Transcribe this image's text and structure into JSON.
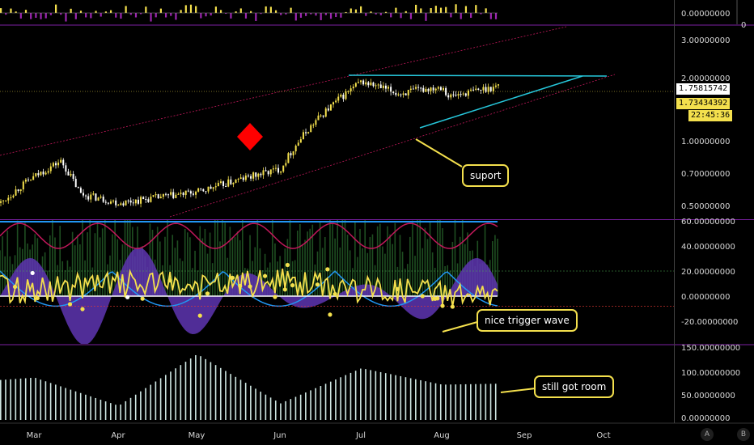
{
  "colors": {
    "background": "#000000",
    "pane_divider": "#7b1fa2",
    "candle_up": "#f4e04d",
    "candle_down": "#ffffff",
    "channel": "#c2185b",
    "triangle": "#26c6da",
    "diamond": "#ff0000",
    "wave_yellow": "#f4e04d",
    "wave_blue": "#2196f3",
    "wave_red": "#c2185b",
    "fill_purple": "#5e35b1",
    "fill_green": "#388e3c",
    "hist_bar": "#d0e8e4",
    "callout_border": "#f4e04d"
  },
  "axis": {
    "months": [
      "Mar",
      "Apr",
      "May",
      "Jun",
      "Jul",
      "Aug",
      "Sep",
      "Oct"
    ],
    "volume_ticks": [
      "0.00000000",
      "0"
    ],
    "price_ticks": [
      "3.00000000",
      "2.00000000",
      "1.00000000",
      "0.70000000",
      "0.50000000"
    ],
    "osc_ticks": [
      "60.00000000",
      "40.00000000",
      "20.00000000",
      "0.00000000",
      "-20.00000000"
    ],
    "hist_ticks": [
      "150.00000000",
      "100.00000000",
      "50.00000000",
      "0.00000000"
    ]
  },
  "price_labels": {
    "last": "1.75815742",
    "current": "1.73434392",
    "countdown": "22:45:36"
  },
  "annotations": {
    "support": "suport",
    "trigger": "nice trigger wave",
    "room": "still got room"
  },
  "buttons": {
    "auto": "A",
    "log": "B"
  },
  "chart_data": [
    {
      "type": "line",
      "pane": "price",
      "y_scale": "log",
      "ylim": [
        0.42,
        3.3
      ],
      "x": [
        "Mar",
        "Apr",
        "May",
        "Jun",
        "Jul",
        "Aug"
      ],
      "series": [
        {
          "values": [
            0.6,
            0.5,
            0.56,
            0.72,
            1.82,
            1.74
          ]
        }
      ]
    },
    {
      "type": "line",
      "pane": "oscillator",
      "ylim": [
        -30,
        60
      ],
      "x": [
        "Mar",
        "Apr",
        "May",
        "Jun",
        "Jul",
        "Aug"
      ],
      "series": [
        {
          "values": [
            5,
            10,
            8,
            12,
            6,
            4
          ]
        }
      ]
    },
    {
      "type": "bar",
      "pane": "histogram",
      "ylim": [
        0,
        150
      ],
      "categories": [
        "Mar",
        "Apr",
        "May",
        "Jun",
        "Jul",
        "Aug"
      ],
      "values": [
        85,
        25,
        135,
        30,
        105,
        70
      ]
    }
  ]
}
